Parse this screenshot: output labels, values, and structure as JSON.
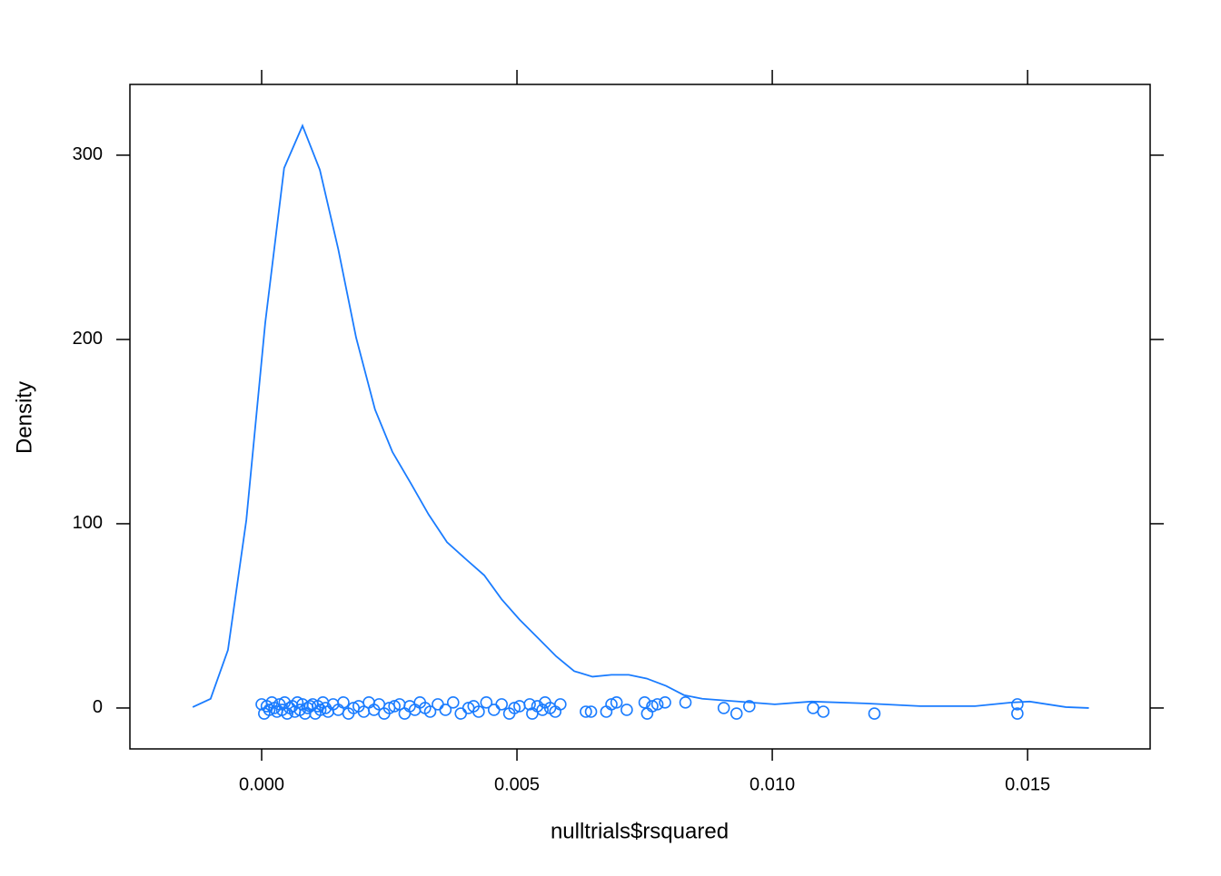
{
  "chart_data": {
    "type": "density",
    "x_label": "nulltrials$rsquared",
    "y_label": "Density",
    "color": "#1a7cff",
    "xlim": [
      -0.00258,
      0.0174
    ],
    "ylim": [
      -22.2,
      338.4
    ],
    "xticks": [
      {
        "value": 0,
        "label": "0.000"
      },
      {
        "value": 0.005,
        "label": "0.005"
      },
      {
        "value": 0.01,
        "label": "0.010"
      },
      {
        "value": 0.015,
        "label": "0.015"
      }
    ],
    "yticks": [
      0,
      100,
      200,
      300
    ],
    "density": {
      "x": [
        -0.00135,
        -0.001,
        -0.00066,
        -0.0003,
        7e-05,
        0.00044,
        0.0008,
        0.00114,
        0.0015,
        0.00185,
        0.00222,
        0.00256,
        0.00292,
        0.00327,
        0.00363,
        0.00399,
        0.00436,
        0.0047,
        0.00505,
        0.00541,
        0.00577,
        0.00612,
        0.00648,
        0.00685,
        0.00719,
        0.00754,
        0.00792,
        0.00827,
        0.00863,
        0.01005,
        0.01077,
        0.01183,
        0.0129,
        0.01397,
        0.01468,
        0.01504,
        0.01575,
        0.0162
      ],
      "y": [
        0.5,
        5,
        31.5,
        102,
        209,
        293,
        316,
        292,
        249,
        201,
        162,
        139,
        122,
        105,
        90,
        81,
        72,
        59,
        48,
        38,
        28,
        20,
        17,
        18,
        18,
        16,
        12,
        7,
        5,
        2,
        3.5,
        2.5,
        1,
        1,
        3,
        3.5,
        0.5,
        0
      ]
    },
    "points": {
      "x": [
        0,
        5e-05,
        0.0001,
        0.00015,
        0.0002,
        0.00025,
        0.0003,
        0.00035,
        0.0004,
        0.00045,
        0.0005,
        0.00055,
        0.0006,
        0.00065,
        0.0007,
        0.00075,
        0.0008,
        0.00085,
        0.0009,
        0.00095,
        0.001,
        0.00105,
        0.0011,
        0.00115,
        0.0012,
        0.00125,
        0.0013,
        0.0014,
        0.0015,
        0.0016,
        0.0017,
        0.0018,
        0.0019,
        0.002,
        0.0021,
        0.0022,
        0.0023,
        0.0024,
        0.0025,
        0.0026,
        0.0027,
        0.0028,
        0.0029,
        0.003,
        0.0031,
        0.0032,
        0.0033,
        0.00345,
        0.0036,
        0.00375,
        0.0039,
        0.00405,
        0.00415,
        0.00425,
        0.0044,
        0.00455,
        0.0047,
        0.00485,
        0.00495,
        0.00505,
        0.00525,
        0.0053,
        0.0054,
        0.0055,
        0.00555,
        0.00565,
        0.00575,
        0.00585,
        0.00635,
        0.00645,
        0.00675,
        0.00685,
        0.00695,
        0.00715,
        0.0075,
        0.00755,
        0.00765,
        0.00775,
        0.0079,
        0.0083,
        0.00905,
        0.0093,
        0.00955,
        0.0108,
        0.011,
        0.012,
        0.0148,
        0.0148
      ],
      "y": [
        2,
        -3,
        1,
        -1,
        3,
        0,
        -2,
        2,
        -1,
        3,
        -3,
        0,
        1,
        -2,
        3,
        -1,
        2,
        -3,
        0,
        1,
        2,
        -3,
        1,
        -1,
        3,
        0,
        -2,
        2,
        -1,
        3,
        -3,
        0,
        1,
        -2,
        3,
        -1,
        2,
        -3,
        0,
        1,
        2,
        -3,
        1,
        -1,
        3,
        0,
        -2,
        2,
        -1,
        3,
        -3,
        0,
        1,
        -2,
        3,
        -1,
        2,
        -3,
        0,
        1,
        2,
        -3,
        1,
        -1,
        3,
        0,
        -2,
        2,
        -2,
        -2,
        -2,
        2,
        3,
        -1,
        3,
        -3,
        1,
        2,
        3,
        3,
        0,
        -3,
        1,
        0,
        -2,
        -3,
        2,
        -3
      ]
    }
  }
}
